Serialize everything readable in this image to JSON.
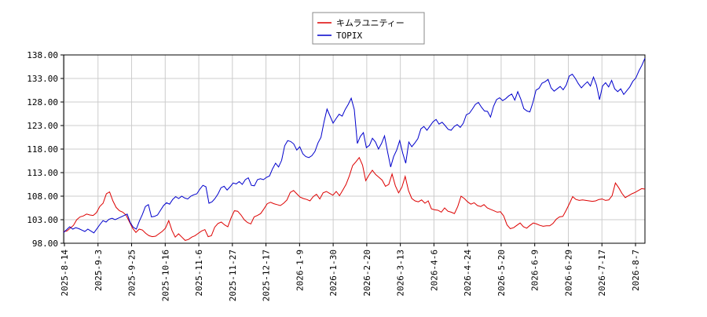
{
  "chart_data": {
    "type": "line",
    "title": "",
    "xlabel": "",
    "ylabel": "",
    "ylim": [
      98.0,
      138.0
    ],
    "y_ticks": [
      "98.00",
      "103.00",
      "108.00",
      "113.00",
      "118.00",
      "123.00",
      "128.00",
      "133.00",
      "138.00"
    ],
    "x_ticks": [
      "2025-8-14",
      "2025-9-3",
      "2025-9-25",
      "2025-10-16",
      "2025-11-6",
      "2025-11-27",
      "2025-12-17",
      "2026-1-9",
      "2026-1-30",
      "2026-2-20",
      "2026-3-13",
      "2026-4-6",
      "2026-4-24",
      "2026-5-20",
      "2026-6-9",
      "2026-6-29",
      "2026-7-17",
      "2026-8-7"
    ],
    "grid": true,
    "legend_position": "top-center",
    "series": [
      {
        "name": "キムラユニティー",
        "color": "#dd0000",
        "values": [
          100.5,
          100.6,
          101.2,
          101.8,
          103.0,
          103.6,
          103.8,
          104.2,
          104.0,
          103.9,
          104.5,
          105.8,
          106.5,
          108.5,
          108.9,
          107.0,
          105.6,
          104.9,
          104.6,
          104.0,
          102.6,
          101.2,
          100.3,
          101.0,
          100.8,
          100.1,
          99.6,
          99.4,
          99.5,
          100.0,
          100.5,
          101.2,
          102.8,
          100.7,
          99.3,
          100.0,
          99.3,
          98.6,
          98.8,
          99.3,
          99.6,
          100.1,
          100.6,
          100.9,
          99.4,
          99.6,
          101.4,
          102.2,
          102.5,
          101.9,
          101.5,
          103.4,
          104.9,
          104.8,
          104.0,
          103.0,
          102.4,
          102.1,
          103.6,
          103.9,
          104.3,
          105.3,
          106.4,
          106.7,
          106.4,
          106.2,
          106.0,
          106.5,
          107.2,
          108.8,
          109.2,
          108.5,
          107.8,
          107.5,
          107.3,
          107.0,
          107.9,
          108.4,
          107.4,
          108.7,
          109.0,
          108.6,
          108.2,
          109.0,
          108.1,
          109.3,
          110.5,
          112.3,
          114.5,
          115.3,
          116.2,
          114.6,
          111.3,
          112.5,
          113.5,
          112.6,
          112.0,
          111.4,
          110.1,
          110.5,
          112.7,
          110.2,
          108.7,
          109.9,
          112.2,
          109.2,
          107.5,
          107.0,
          106.8,
          107.2,
          106.5,
          107.0,
          105.3,
          105.1,
          105.0,
          104.6,
          105.5,
          104.8,
          104.6,
          104.3,
          105.8,
          108.0,
          107.5,
          106.8,
          106.3,
          106.6,
          106.0,
          105.8,
          106.2,
          105.5,
          105.2,
          104.9,
          104.6,
          104.7,
          103.8,
          101.9,
          101.1,
          101.3,
          101.8,
          102.3,
          101.5,
          101.2,
          101.8,
          102.3,
          102.1,
          101.8,
          101.6,
          101.7,
          101.7,
          102.2,
          103.1,
          103.6,
          103.7,
          105.0,
          106.4,
          107.9,
          107.3,
          107.1,
          107.2,
          107.1,
          107.0,
          106.9,
          107.0,
          107.3,
          107.4,
          107.1,
          107.2,
          108.1,
          110.8,
          109.8,
          108.6,
          107.7,
          108.1,
          108.5,
          108.8,
          109.2,
          109.6,
          109.5
        ]
      },
      {
        "name": "TOPIX",
        "color": "#0000cc",
        "values": [
          100.3,
          100.9,
          101.5,
          101.0,
          101.3,
          101.1,
          100.8,
          100.5,
          101.0,
          100.6,
          100.2,
          101.1,
          102.0,
          102.8,
          102.5,
          103.1,
          103.3,
          103.0,
          103.3,
          103.6,
          103.9,
          104.2,
          102.4,
          101.4,
          101.0,
          102.7,
          104.1,
          105.8,
          106.2,
          103.6,
          103.7,
          104.0,
          105.0,
          106.0,
          106.6,
          106.3,
          107.3,
          107.9,
          107.5,
          108.0,
          107.6,
          107.4,
          108.0,
          108.3,
          108.5,
          109.5,
          110.3,
          110.0,
          106.5,
          106.8,
          107.5,
          108.5,
          109.8,
          110.1,
          109.3,
          110.0,
          110.8,
          110.6,
          111.1,
          110.5,
          111.5,
          111.9,
          110.3,
          110.2,
          111.5,
          111.7,
          111.5,
          112.0,
          112.3,
          113.8,
          115.0,
          114.2,
          115.6,
          118.7,
          119.8,
          119.6,
          119.1,
          117.8,
          118.5,
          117.0,
          116.4,
          116.2,
          116.6,
          117.5,
          119.3,
          120.5,
          123.8,
          126.5,
          125.0,
          123.5,
          124.5,
          125.4,
          125.0,
          126.4,
          127.5,
          128.8,
          126.4,
          119.2,
          120.7,
          121.5,
          118.3,
          118.8,
          120.3,
          119.5,
          118.0,
          119.2,
          120.8,
          117.4,
          114.2,
          116.4,
          117.8,
          119.8,
          117.1,
          115.0,
          119.5,
          118.5,
          119.3,
          120.2,
          122.3,
          122.8,
          122.0,
          122.9,
          123.8,
          124.3,
          123.3,
          123.7,
          123.0,
          122.2,
          122.0,
          122.8,
          123.2,
          122.6,
          123.5,
          125.3,
          125.6,
          126.5,
          127.5,
          127.9,
          126.9,
          126.1,
          126.0,
          124.8,
          127.1,
          128.5,
          128.9,
          128.3,
          128.7,
          129.3,
          129.7,
          128.4,
          130.2,
          128.6,
          126.6,
          126.1,
          125.9,
          127.9,
          130.5,
          130.9,
          132.0,
          132.3,
          132.8,
          131.0,
          130.3,
          130.8,
          131.3,
          130.6,
          131.6,
          133.5,
          133.9,
          133.0,
          131.9,
          131.0,
          131.7,
          132.3,
          131.4,
          133.3,
          131.6,
          128.5,
          131.4,
          132.1,
          131.2,
          132.6,
          130.8,
          130.2,
          130.8,
          129.6,
          130.4,
          131.2,
          132.4,
          133.1,
          134.6,
          135.8,
          137.3
        ]
      }
    ]
  }
}
